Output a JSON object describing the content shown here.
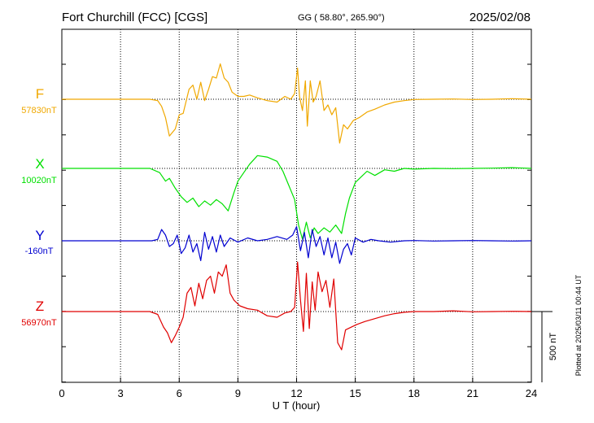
{
  "header": {
    "station": "Fort Churchill (FCC)  [CGS]",
    "coords": "GG ( 58.80°, 265.90°)",
    "date": "2025/02/08"
  },
  "side_note": "Plotted at 2025/03/11 00:44 UT",
  "chart_data": {
    "type": "line",
    "title": "Fort Churchill (FCC)  [CGS]",
    "xlabel": "U T (hour)",
    "ylabel": "",
    "xlim": [
      0,
      24
    ],
    "x_ticks": [
      0,
      3,
      6,
      9,
      12,
      15,
      18,
      21,
      24
    ],
    "scale_bar": {
      "value": 500,
      "label": "500 nT"
    },
    "grid": true,
    "series": [
      {
        "name": "F",
        "baseline_label": "57830nT",
        "baseline": 57830,
        "color": "#f0a800",
        "x": [
          0,
          4.5,
          4.9,
          5.1,
          5.3,
          5.5,
          5.8,
          6.0,
          6.2,
          6.5,
          6.7,
          6.9,
          7.1,
          7.3,
          7.5,
          7.7,
          7.9,
          8.1,
          8.3,
          8.5,
          8.7,
          9.0,
          9.3,
          9.6,
          10.0,
          10.5,
          11.0,
          11.4,
          11.7,
          11.9,
          12.05,
          12.15,
          12.3,
          12.45,
          12.55,
          12.7,
          12.85,
          13.0,
          13.2,
          13.4,
          13.6,
          13.8,
          14.0,
          14.2,
          14.4,
          14.6,
          14.9,
          15.2,
          15.6,
          16.0,
          16.5,
          17.0,
          17.5,
          18.0,
          19,
          20,
          21,
          22,
          23,
          24
        ],
        "y": [
          57830,
          57830,
          57820,
          57780,
          57700,
          57570,
          57620,
          57720,
          57730,
          57900,
          57930,
          57830,
          57950,
          57820,
          57900,
          57990,
          57980,
          58080,
          57980,
          57950,
          57880,
          57850,
          57850,
          57860,
          57840,
          57820,
          57810,
          57850,
          57830,
          57870,
          58050,
          57850,
          57750,
          57960,
          57640,
          57960,
          57810,
          57850,
          57960,
          57750,
          57790,
          57720,
          57770,
          57520,
          57650,
          57620,
          57680,
          57700,
          57740,
          57760,
          57790,
          57810,
          57820,
          57828,
          57830,
          57832,
          57828,
          57830,
          57834,
          57830
        ]
      },
      {
        "name": "X",
        "baseline_label": "10020nT",
        "baseline": 10020,
        "color": "#00e000",
        "x": [
          0,
          4.5,
          5.0,
          5.3,
          5.5,
          5.8,
          6.1,
          6.4,
          6.7,
          7.0,
          7.3,
          7.6,
          7.9,
          8.2,
          8.5,
          8.8,
          9.0,
          9.3,
          9.6,
          10.0,
          10.5,
          11.0,
          11.3,
          11.6,
          11.9,
          12.1,
          12.3,
          12.5,
          12.7,
          12.9,
          13.1,
          13.4,
          13.7,
          14.0,
          14.3,
          14.5,
          14.7,
          15.0,
          15.3,
          15.6,
          16.0,
          16.5,
          17.0,
          17.5,
          18.0,
          19,
          20,
          21,
          22,
          23,
          24
        ],
        "y": [
          10020,
          10020,
          9990,
          9930,
          9950,
          9880,
          9820,
          9780,
          9810,
          9750,
          9790,
          9760,
          9800,
          9770,
          9720,
          9850,
          9930,
          9990,
          10050,
          10110,
          10100,
          10070,
          10000,
          9900,
          9800,
          9620,
          9520,
          9640,
          9530,
          9600,
          9560,
          9600,
          9570,
          9620,
          9560,
          9700,
          9810,
          9920,
          9960,
          10000,
          9970,
          10010,
          10000,
          10020,
          10015,
          10020,
          10018,
          10020,
          10022,
          10025,
          10020
        ]
      },
      {
        "name": "Y",
        "baseline_label": "-160nT",
        "baseline": -160,
        "color": "#0000d0",
        "x": [
          0,
          4.6,
          4.9,
          5.1,
          5.3,
          5.5,
          5.7,
          5.9,
          6.1,
          6.3,
          6.5,
          6.7,
          6.9,
          7.1,
          7.3,
          7.5,
          7.7,
          7.9,
          8.1,
          8.3,
          8.6,
          9.0,
          9.5,
          10.0,
          10.5,
          11.0,
          11.5,
          11.8,
          12.0,
          12.2,
          12.4,
          12.6,
          12.8,
          13.0,
          13.2,
          13.4,
          13.6,
          13.8,
          14.0,
          14.2,
          14.4,
          14.6,
          14.8,
          15.0,
          15.4,
          15.8,
          16.2,
          16.8,
          17.5,
          18.0,
          19,
          20,
          21,
          22,
          23,
          24
        ],
        "y": [
          -160,
          -160,
          -150,
          -80,
          -120,
          -200,
          -180,
          -120,
          -250,
          -210,
          -120,
          -240,
          -180,
          -300,
          -100,
          -220,
          -130,
          -240,
          -120,
          -200,
          -140,
          -170,
          -140,
          -160,
          -150,
          -130,
          -150,
          -120,
          -60,
          -230,
          -100,
          -280,
          -80,
          -200,
          -130,
          -260,
          -140,
          -280,
          -170,
          -320,
          -220,
          -180,
          -260,
          -140,
          -170,
          -150,
          -160,
          -170,
          -160,
          -158,
          -162,
          -160,
          -158,
          -160,
          -162,
          -160
        ]
      },
      {
        "name": "Z",
        "baseline_label": "56970nT",
        "baseline": 56970,
        "color": "#e00000",
        "x": [
          0,
          4.5,
          4.9,
          5.2,
          5.4,
          5.6,
          5.8,
          6.0,
          6.2,
          6.4,
          6.6,
          6.8,
          7.0,
          7.2,
          7.4,
          7.6,
          7.8,
          8.0,
          8.2,
          8.4,
          8.6,
          8.8,
          9.1,
          9.5,
          10.0,
          10.5,
          11.0,
          11.4,
          11.7,
          11.9,
          12.05,
          12.2,
          12.35,
          12.5,
          12.65,
          12.8,
          12.95,
          13.1,
          13.3,
          13.5,
          13.7,
          13.9,
          14.1,
          14.3,
          14.5,
          14.8,
          15.1,
          15.5,
          16.0,
          16.5,
          17.0,
          17.5,
          18.0,
          19,
          20,
          21,
          22,
          23,
          24
        ],
        "y": [
          56970,
          56970,
          56950,
          56860,
          56820,
          56750,
          56800,
          56860,
          56930,
          57100,
          57140,
          57010,
          57170,
          57060,
          57190,
          57220,
          57100,
          57250,
          57220,
          57300,
          57100,
          57050,
          57010,
          56990,
          56980,
          56940,
          56930,
          56960,
          56970,
          57000,
          57320,
          57050,
          56830,
          57240,
          56850,
          57180,
          56980,
          57250,
          57110,
          57190,
          57000,
          57200,
          56750,
          56700,
          56840,
          56860,
          56880,
          56900,
          56920,
          56940,
          56955,
          56965,
          56970,
          56970,
          56975,
          56968,
          56970,
          56972,
          56970
        ]
      }
    ]
  }
}
